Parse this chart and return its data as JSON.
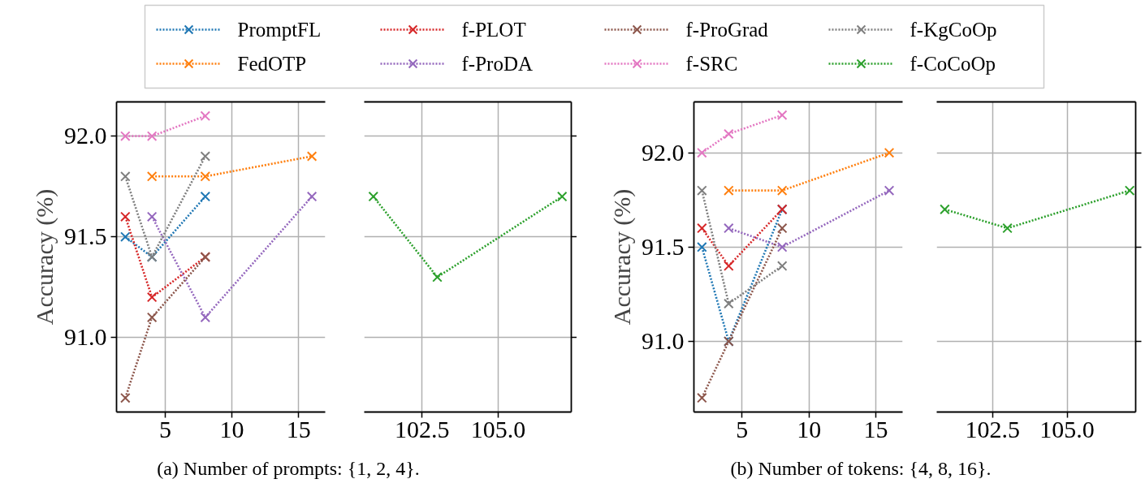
{
  "chart_data": [
    {
      "type": "line",
      "xlabel": "(a) Number of prompts: {1, 2, 4}.",
      "ylabel": "Accuracy (%)",
      "xlim": [
        1.34,
        17.0
      ],
      "ylim": [
        90.63,
        92.17
      ],
      "xticks": [
        5,
        10,
        15
      ],
      "yticks": [
        {
          "value": 91,
          "label": "91.0"
        },
        91.5,
        {
          "value": 92,
          "label": "92.0"
        }
      ],
      "grid": true,
      "marker": "cross",
      "line_style": "dotted",
      "legend": "top",
      "series": [
        {
          "name": "PromptFL",
          "color": "#1f77b4",
          "x": [
            2,
            4,
            8
          ],
          "values": [
            91.5,
            91.4,
            91.7
          ]
        },
        {
          "name": "FedOTP",
          "color": "#ff7f0e",
          "x": [
            4,
            8,
            16
          ],
          "values": [
            91.8,
            91.8,
            91.9
          ]
        },
        {
          "name": "f-PLOT",
          "color": "#d62728",
          "x": [
            2,
            4,
            8
          ],
          "values": [
            91.6,
            91.2,
            91.4
          ]
        },
        {
          "name": "f-ProDA",
          "color": "#9467bd",
          "x": [
            4,
            8,
            16
          ],
          "values": [
            91.6,
            91.1,
            91.7
          ]
        },
        {
          "name": "f-ProGrad",
          "color": "#8c564b",
          "x": [
            2,
            4,
            8
          ],
          "values": [
            90.7,
            91.1,
            91.4
          ]
        },
        {
          "name": "f-SRC",
          "color": "#e377c2",
          "x": [
            2,
            4,
            8
          ],
          "values": [
            92.0,
            92.0,
            92.1
          ]
        },
        {
          "name": "f-KgCoOp",
          "color": "#7f7f7f",
          "x": [
            2,
            4,
            8
          ],
          "values": [
            91.8,
            91.4,
            91.9
          ]
        }
      ]
    },
    {
      "type": "line",
      "xlim": [
        100.6,
        107.4
      ],
      "ylim": [
        90.63,
        92.17
      ],
      "xticks": [
        102.5,
        {
          "value": 105,
          "label": "105.0"
        }
      ],
      "yticks": [
        {
          "value": 91,
          "label": null
        },
        {
          "value": 91.5,
          "label": null
        },
        {
          "value": 92,
          "label": null
        }
      ],
      "tick_labels": "x",
      "grid": true,
      "marker": "cross",
      "line_style": "dotted",
      "legend": "top",
      "series": [
        {
          "name": "f-CoCoOp",
          "color": "#2ca02c",
          "x": [
            100.9,
            103.0,
            107.1
          ],
          "values": [
            91.7,
            91.3,
            91.7
          ]
        }
      ]
    },
    {
      "type": "line",
      "xlabel": "(b) Number of tokens: {4, 8, 16}.",
      "ylabel": "Accuracy (%)",
      "xlim": [
        1.4,
        17.0
      ],
      "ylim": [
        90.625,
        92.27
      ],
      "xticks": [
        5,
        10,
        15
      ],
      "yticks": [
        {
          "value": 91,
          "label": "91.0"
        },
        91.5,
        {
          "value": 92,
          "label": "92.0"
        }
      ],
      "grid": true,
      "marker": "cross",
      "line_style": "dotted",
      "series": [
        {
          "color": "#1f77b4",
          "x": [
            2,
            4,
            8
          ],
          "values": [
            91.5,
            91.0,
            91.7
          ]
        },
        {
          "color": "#ff7f0e",
          "x": [
            4,
            8,
            16
          ],
          "values": [
            91.8,
            91.8,
            92.0
          ]
        },
        {
          "color": "#d62728",
          "x": [
            2,
            4,
            8
          ],
          "values": [
            91.6,
            91.4,
            91.7
          ]
        },
        {
          "color": "#9467bd",
          "x": [
            4,
            8,
            16
          ],
          "values": [
            91.6,
            91.5,
            91.8
          ]
        },
        {
          "color": "#8c564b",
          "x": [
            2,
            4,
            8
          ],
          "values": [
            90.7,
            91.0,
            91.6
          ]
        },
        {
          "color": "#e377c2",
          "x": [
            2,
            4,
            8
          ],
          "values": [
            92.0,
            92.1,
            92.2
          ]
        },
        {
          "color": "#7f7f7f",
          "x": [
            2,
            4,
            8
          ],
          "values": [
            91.8,
            91.2,
            91.4
          ]
        }
      ]
    },
    {
      "type": "line",
      "xlim": [
        100.63,
        107.3
      ],
      "ylim": [
        90.625,
        92.27
      ],
      "xticks": [
        102.5,
        {
          "value": 105,
          "label": "105.0"
        }
      ],
      "yticks": [
        {
          "value": 91,
          "label": null
        },
        {
          "value": 91.5,
          "label": null
        },
        {
          "value": 92,
          "label": null
        }
      ],
      "tick_labels": "x",
      "grid": true,
      "marker": "cross",
      "line_style": "dotted",
      "series": [
        {
          "color": "#2ca02c",
          "x": [
            100.9,
            103.0,
            107.1
          ],
          "values": [
            91.7,
            91.6,
            91.8
          ]
        }
      ]
    }
  ]
}
